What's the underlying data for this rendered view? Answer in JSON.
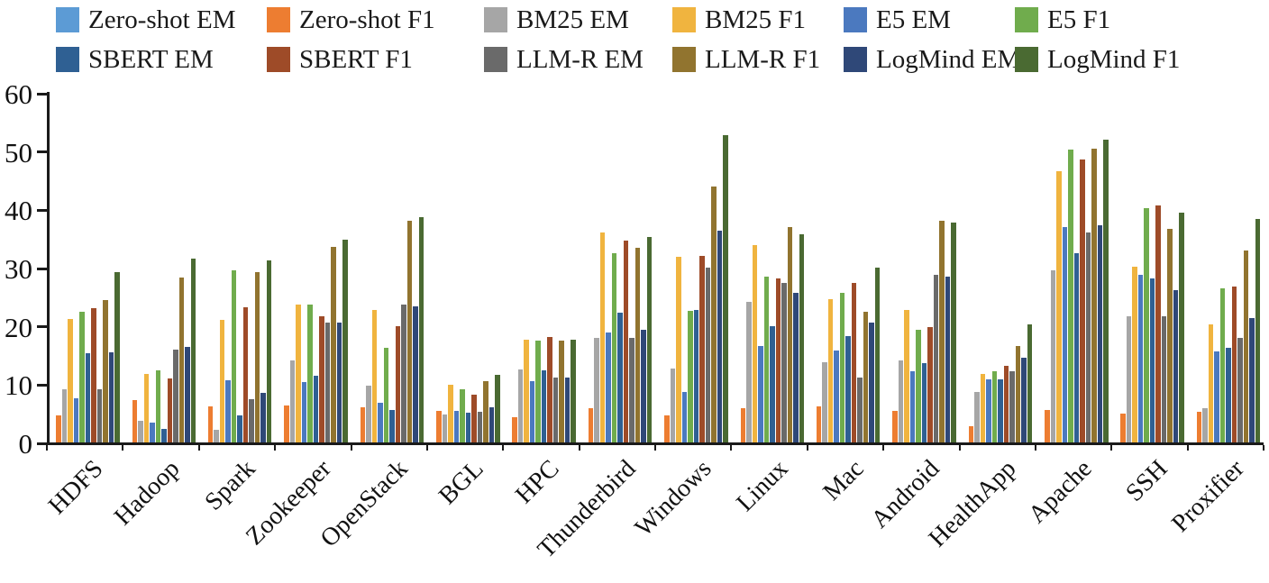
{
  "chart_data": {
    "type": "bar",
    "title": "",
    "xlabel": "",
    "ylabel": "",
    "ylim": [
      0,
      60
    ],
    "yticks": [
      "0",
      "10",
      "20",
      "30",
      "40",
      "50",
      "60"
    ],
    "grid": false,
    "legend_position": "top",
    "legend_rows": 2,
    "categories": [
      "HDFS",
      "Hadoop",
      "Spark",
      "Zookeeper",
      "OpenStack",
      "BGL",
      "HPC",
      "Thunderbird",
      "Windows",
      "Linux",
      "Mac",
      "Android",
      "HealthApp",
      "Apache",
      "SSH",
      "Proxifier"
    ],
    "series": [
      {
        "name": "Zero-shot EM",
        "color": "#5C9BD5",
        "values": [
          0,
          0,
          0,
          0,
          0,
          0,
          0,
          0,
          0,
          0,
          0,
          0,
          0,
          0,
          0,
          0
        ]
      },
      {
        "name": "Zero-shot F1",
        "color": "#ED7D31",
        "values": [
          4.6,
          7.3,
          6.2,
          6.4,
          6.0,
          5.4,
          4.3,
          5.9,
          4.6,
          5.9,
          6.2,
          5.4,
          2.8,
          5.6,
          5.0,
          5.3
        ]
      },
      {
        "name": "BM25 EM",
        "color": "#A6A6A6",
        "values": [
          9.2,
          3.7,
          2.2,
          14.0,
          9.8,
          4.8,
          12.6,
          18.0,
          12.7,
          24.2,
          13.7,
          14.0,
          8.6,
          29.5,
          21.7,
          5.9
        ]
      },
      {
        "name": "BM25 F1",
        "color": "#F0B43F",
        "values": [
          21.2,
          11.8,
          21.0,
          23.7,
          22.8,
          9.9,
          17.6,
          36.1,
          31.8,
          33.8,
          24.6,
          22.8,
          11.8,
          46.5,
          30.1,
          20.3
        ]
      },
      {
        "name": "E5 EM",
        "color": "#4B79BF",
        "values": [
          7.6,
          3.4,
          10.6,
          10.4,
          6.8,
          5.4,
          10.5,
          18.8,
          8.6,
          16.6,
          15.8,
          12.2,
          10.8,
          36.9,
          28.7,
          15.6
        ]
      },
      {
        "name": "E5 F1",
        "color": "#70AC4D",
        "values": [
          22.5,
          12.4,
          29.5,
          23.6,
          16.3,
          9.2,
          17.4,
          32.4,
          22.6,
          28.4,
          25.7,
          19.4,
          12.2,
          50.2,
          40.2,
          26.4
        ]
      },
      {
        "name": "SBERT EM",
        "color": "#2F6093",
        "values": [
          15.3,
          2.3,
          4.6,
          11.5,
          5.6,
          5.1,
          12.4,
          22.3,
          22.7,
          20.0,
          18.3,
          13.6,
          10.9,
          32.4,
          28.1,
          16.3
        ]
      },
      {
        "name": "SBERT F1",
        "color": "#9E4B28",
        "values": [
          23.0,
          11.0,
          23.2,
          21.6,
          20.0,
          8.2,
          18.1,
          34.7,
          32.0,
          28.2,
          27.4,
          19.8,
          13.2,
          48.5,
          40.6,
          26.8
        ]
      },
      {
        "name": "LLM-R EM",
        "color": "#6A6A6A",
        "values": [
          9.2,
          16.0,
          7.4,
          20.6,
          23.7,
          5.3,
          11.2,
          18.0,
          30.0,
          27.4,
          11.2,
          28.7,
          12.2,
          36.1,
          21.7,
          18.0
        ]
      },
      {
        "name": "LLM-R F1",
        "color": "#91742F",
        "values": [
          24.5,
          28.3,
          29.3,
          33.5,
          38.0,
          10.5,
          17.4,
          33.4,
          43.9,
          36.9,
          22.5,
          38.0,
          16.6,
          50.4,
          36.6,
          33.0
        ]
      },
      {
        "name": "LogMind EM",
        "color": "#2F4878",
        "values": [
          15.5,
          16.4,
          8.5,
          20.5,
          23.3,
          6.1,
          11.1,
          19.3,
          36.4,
          25.6,
          20.5,
          28.5,
          14.6,
          37.2,
          26.2,
          21.4
        ]
      },
      {
        "name": "LogMind F1",
        "color": "#4A6A32",
        "values": [
          29.2,
          31.5,
          31.2,
          34.8,
          38.6,
          11.6,
          17.7,
          35.2,
          52.7,
          35.8,
          30.0,
          37.8,
          20.3,
          52.0,
          39.4,
          38.3
        ]
      }
    ]
  },
  "layout_colors": {
    "axis": "#1a1a1a",
    "text": "#111111",
    "background": "#ffffff"
  }
}
